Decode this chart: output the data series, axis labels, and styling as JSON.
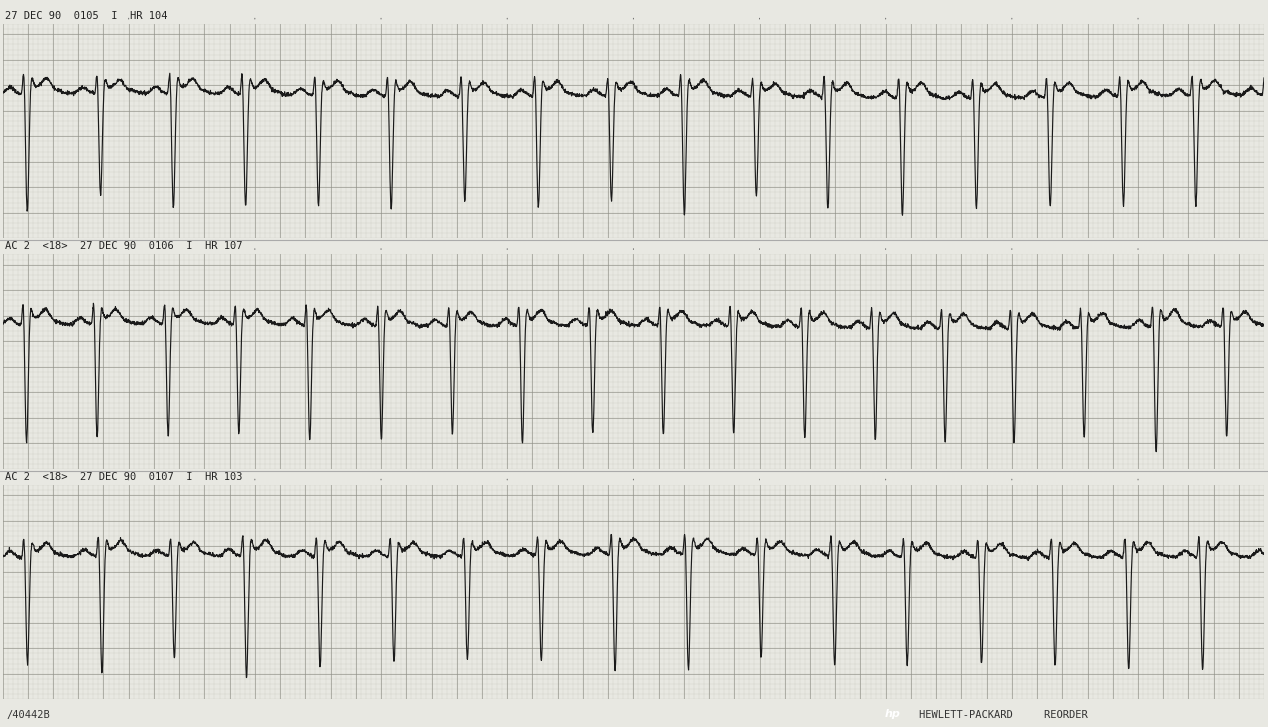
{
  "bg_color": "#e8e8e2",
  "grid_color_minor": "#b8b8b0",
  "grid_color_major": "#909088",
  "ecg_color": "#1a1a1a",
  "strip_labels": [
    "27 DEC 90  0105  I  HR 104",
    "AC 2  ‘18’  27 DEC 90  0106  I  HR 107",
    "AC 2  ‘18’  27 DEC 90  0107  I  HR 103"
  ],
  "strip_labels_raw": [
    "27 DEC 90  0105  I  HR 104",
    "AC 2  <18>  27 DEC 90  0106  I  HR 107",
    "AC 2  <18>  27 DEC 90  0107  I  HR 103"
  ],
  "footer_left": "/40442B",
  "footer_right": "HEWLETT-PACKARD     REORDER",
  "hr": [
    104,
    107,
    103
  ],
  "n_strips": 3,
  "separator_color": "#aaaaaa",
  "label_color": "#222222",
  "footer_bg": "#d8d8d0"
}
